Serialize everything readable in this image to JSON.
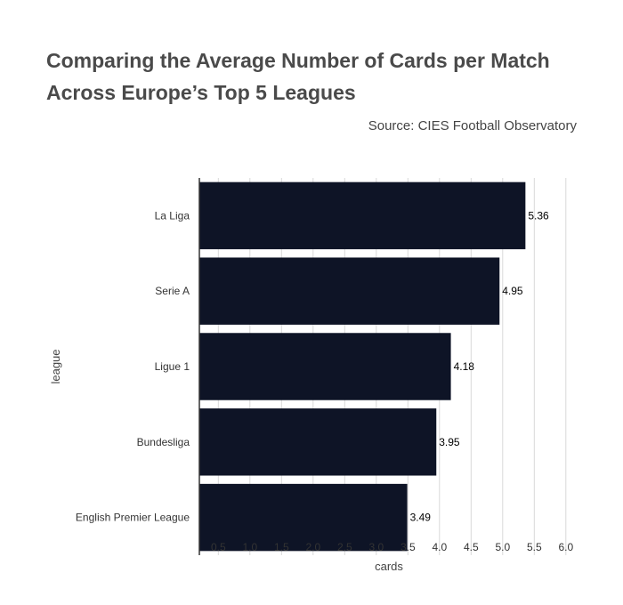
{
  "title_lines": [
    "Comparing the Average Number of Cards per Match",
    "Across Europe’s Top 5 Leagues"
  ],
  "source": "Source: CIES Football Observatory",
  "chart_data": {
    "type": "bar",
    "orientation": "horizontal",
    "categories": [
      "La Liga",
      "Serie A",
      "Ligue 1",
      "Bundesliga",
      "English Premier League"
    ],
    "values": [
      5.36,
      4.95,
      4.18,
      3.95,
      3.49
    ],
    "data_labels": [
      "5.36",
      "4.95",
      "4.18",
      "3.95",
      "3.49"
    ],
    "xlabel": "cards",
    "ylabel": "league",
    "xlim": [
      0.2,
      6.2
    ],
    "xticks": [
      0.5,
      1.0,
      1.5,
      2.0,
      2.5,
      3.0,
      3.5,
      4.0,
      4.5,
      5.0,
      5.5,
      6.0
    ],
    "xtick_labels": [
      "0.5",
      "1.0",
      "1.5",
      "2.0",
      "2.5",
      "3.0",
      "3.5",
      "4.0",
      "4.5",
      "5.0",
      "5.5",
      "6.0"
    ],
    "grid": "vertical",
    "colors": {
      "bar": "#0e1426",
      "grid": "#d9d9d9",
      "axis": "#333333"
    }
  }
}
